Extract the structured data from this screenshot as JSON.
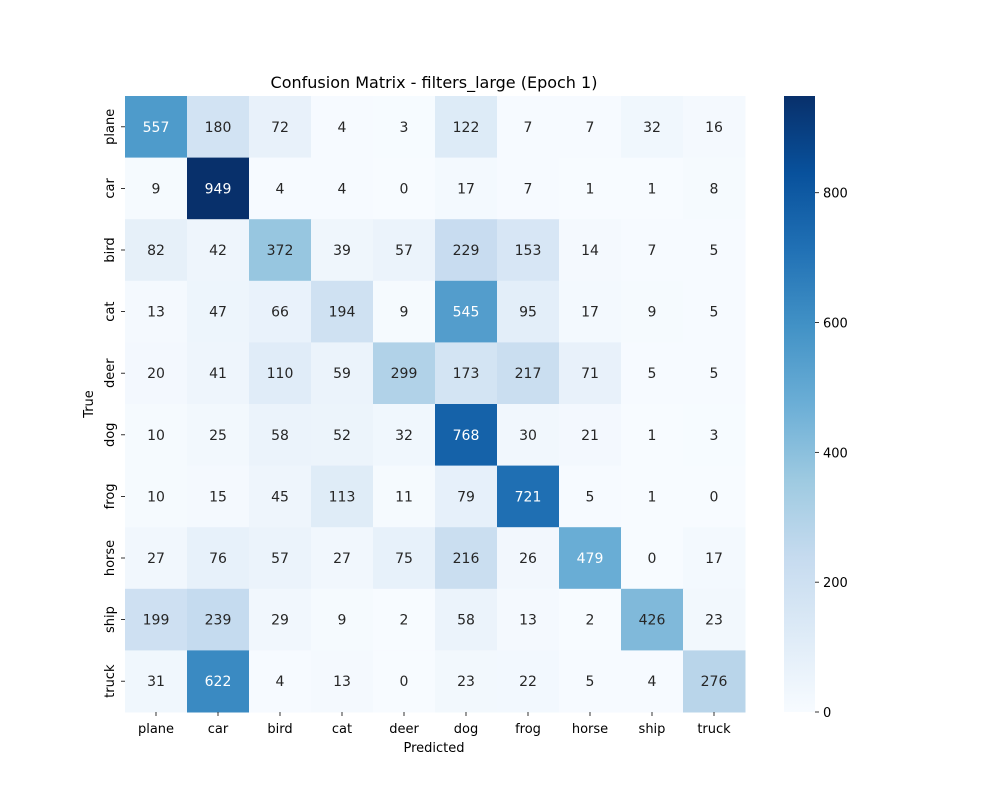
{
  "chart_data": {
    "type": "heatmap",
    "title": "Confusion Matrix - filters_large (Epoch 1)",
    "xlabel": "Predicted",
    "ylabel": "True",
    "x_categories": [
      "plane",
      "car",
      "bird",
      "cat",
      "deer",
      "dog",
      "frog",
      "horse",
      "ship",
      "truck"
    ],
    "y_categories": [
      "plane",
      "car",
      "bird",
      "cat",
      "deer",
      "dog",
      "frog",
      "horse",
      "ship",
      "truck"
    ],
    "values": [
      [
        557,
        180,
        72,
        4,
        3,
        122,
        7,
        7,
        32,
        16
      ],
      [
        9,
        949,
        4,
        4,
        0,
        17,
        7,
        1,
        1,
        8
      ],
      [
        82,
        42,
        372,
        39,
        57,
        229,
        153,
        14,
        7,
        5
      ],
      [
        13,
        47,
        66,
        194,
        9,
        545,
        95,
        17,
        9,
        5
      ],
      [
        20,
        41,
        110,
        59,
        299,
        173,
        217,
        71,
        5,
        5
      ],
      [
        10,
        25,
        58,
        52,
        32,
        768,
        30,
        21,
        1,
        3
      ],
      [
        10,
        15,
        45,
        113,
        11,
        79,
        721,
        5,
        1,
        0
      ],
      [
        27,
        76,
        57,
        27,
        75,
        216,
        26,
        479,
        0,
        17
      ],
      [
        199,
        239,
        29,
        9,
        2,
        58,
        13,
        2,
        426,
        23
      ],
      [
        31,
        622,
        4,
        13,
        0,
        23,
        22,
        5,
        4,
        276
      ]
    ],
    "colormap": "Blues",
    "color_range": [
      0,
      949
    ],
    "colorbar_ticks": [
      0,
      200,
      400,
      600,
      800
    ],
    "annotations": true,
    "grid": false
  }
}
